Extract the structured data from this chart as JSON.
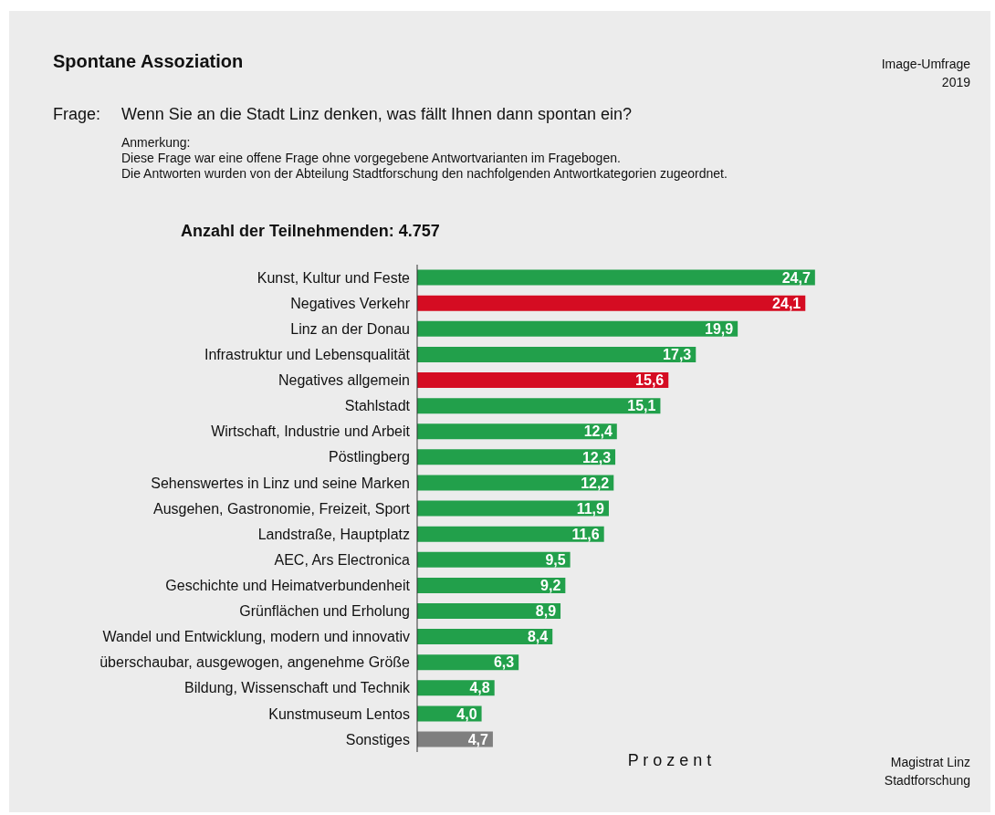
{
  "chart_data": {
    "type": "bar",
    "orientation": "horizontal",
    "title": "Spontane Assoziation",
    "xlabel": "P r o z e n t",
    "annotations": [
      "Image-Umfrage",
      "2019",
      "Frage:",
      "Wenn Sie an die Stadt Linz denken, was fällt Ihnen dann spontan ein?",
      "Anmerkung:",
      "Diese Frage war eine offene Frage ohne vorgegebene Antwortvarianten im Fragebogen.",
      "Die Antworten wurden von der Abteilung Stadtforschung den nachfolgenden Antwortkategorien zugeordnet.",
      "Anzahl der Teilnehmenden:  4.757",
      "Magistrat Linz",
      "Stadtforschung"
    ],
    "categories": [
      "Kunst, Kultur und Feste",
      "Negatives Verkehr",
      "Linz an der Donau",
      "Infrastruktur und Lebensqualität",
      "Negatives allgemein",
      "Stahlstadt",
      "Wirtschaft, Industrie und Arbeit",
      "Pöstlingberg",
      "Sehenswertes in Linz und seine Marken",
      "Ausgehen, Gastronomie, Freizeit, Sport",
      "Landstraße, Hauptplatz",
      "AEC, Ars Electronica",
      "Geschichte und Heimatverbundenheit",
      "Grünflächen und Erholung",
      "Wandel und Entwicklung, modern und innovativ",
      "überschaubar, ausgewogen, angenehme Größe",
      "Bildung, Wissenschaft und Technik",
      "Kunstmuseum Lentos",
      "Sonstiges"
    ],
    "values": [
      24.7,
      24.1,
      19.9,
      17.3,
      15.6,
      15.1,
      12.4,
      12.3,
      12.2,
      11.9,
      11.6,
      9.5,
      9.2,
      8.9,
      8.4,
      6.3,
      4.8,
      4.0,
      4.7
    ],
    "value_labels": [
      "24,7",
      "24,1",
      "19,9",
      "17,3",
      "15,6",
      "15,1",
      "12,4",
      "12,3",
      "12,2",
      "11,9",
      "11,6",
      "9,5",
      "9,2",
      "8,9",
      "8,4",
      "6,3",
      "4,8",
      "4,0",
      "4,7"
    ],
    "colors": [
      "#22a04b",
      "#d50c22",
      "#22a04b",
      "#22a04b",
      "#d50c22",
      "#22a04b",
      "#22a04b",
      "#22a04b",
      "#22a04b",
      "#22a04b",
      "#22a04b",
      "#22a04b",
      "#22a04b",
      "#22a04b",
      "#22a04b",
      "#22a04b",
      "#22a04b",
      "#22a04b",
      "#7f7f7f"
    ]
  }
}
